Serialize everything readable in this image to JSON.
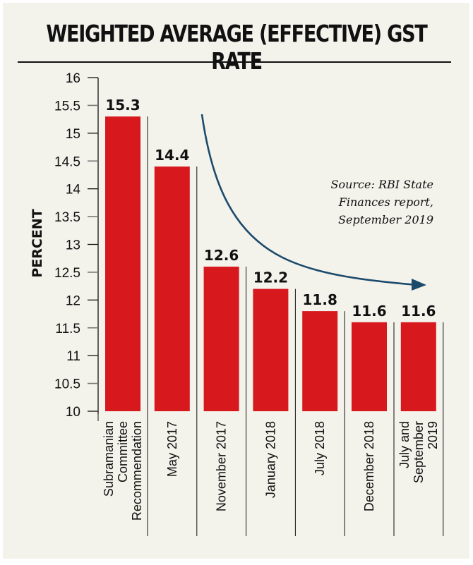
{
  "chart_data": {
    "type": "bar",
    "title": "WEIGHTED AVERAGE (EFFECTIVE) GST RATE",
    "xlabel": "",
    "ylabel": "PERCENT",
    "ylim": [
      10,
      16
    ],
    "yticks": [
      "10",
      "10.5",
      "11",
      "11.5",
      "12",
      "12.5",
      "13",
      "13.5",
      "14",
      "14.5",
      "15",
      "15.5",
      "16"
    ],
    "categories": [
      [
        "Subramanian",
        "Committee",
        "Recommendation"
      ],
      [
        "May 2017"
      ],
      [
        "November 2017"
      ],
      [
        "January 2018"
      ],
      [
        "July 2018"
      ],
      [
        "December 2018"
      ],
      [
        "July and",
        "September",
        "2019"
      ]
    ],
    "values": [
      15.3,
      14.4,
      12.6,
      12.2,
      11.8,
      11.6,
      11.6
    ],
    "value_labels": [
      "15.3",
      "14.4",
      "12.6",
      "12.2",
      "11.8",
      "11.6",
      "11.6"
    ],
    "grid": false,
    "annotations": {
      "source_lines": [
        "Source: RBI State",
        "Finances report,",
        "September 2019"
      ],
      "trend_arrow": "downward curve"
    },
    "colors": {
      "bar": "#d7191e",
      "arrow": "#1b4a6b",
      "background": "#f3f2eb"
    }
  }
}
